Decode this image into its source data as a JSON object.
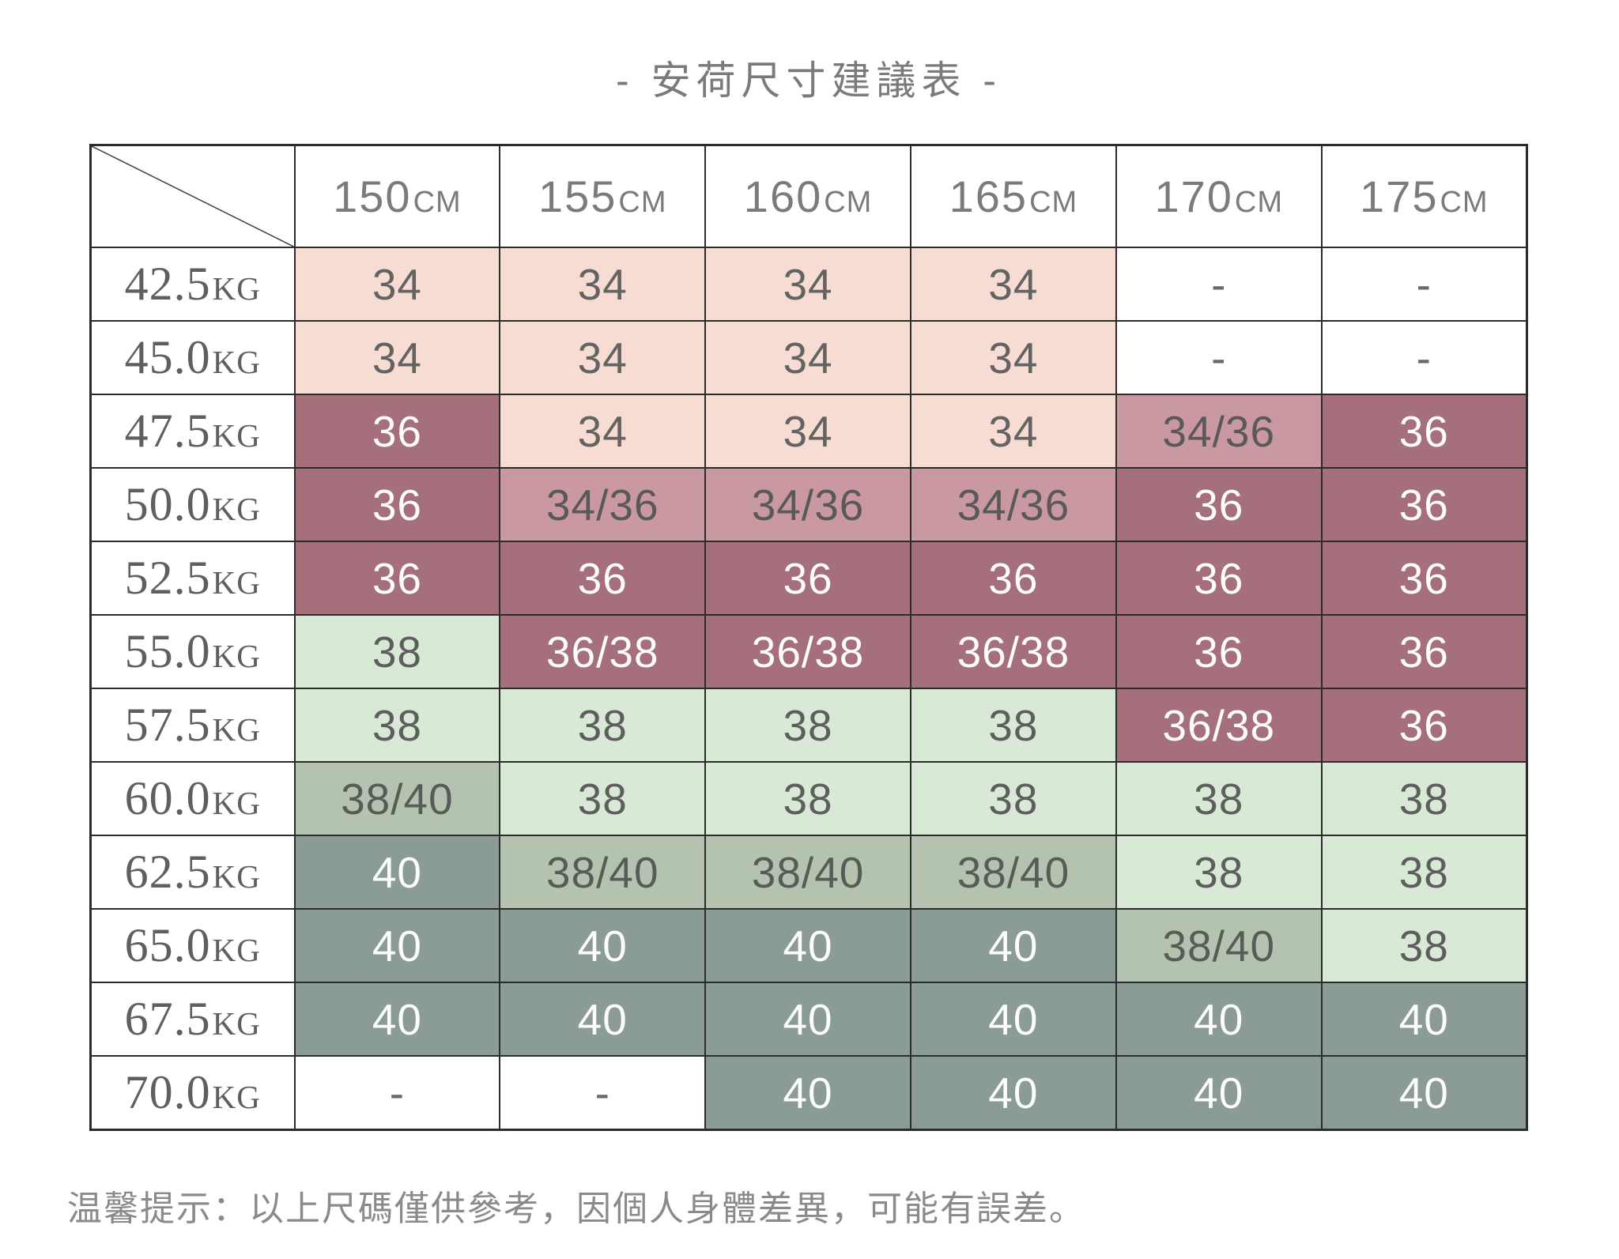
{
  "title": "- 安荷尺寸建議表 -",
  "footer": "温馨提示：以上尺碼僅供參考，因個人身體差異，可能有誤差。",
  "colors": {
    "light_pink": "#f6dcd2",
    "medium_mauve": "#c998a0",
    "dark_mauve": "#a5707c",
    "light_green": "#d8ead6",
    "medium_green": "#b3c3b0",
    "gray_green": "#8b9b96",
    "border": "#2b2b2b",
    "text_gray": "#636363",
    "text_white": "#fdfdfd"
  },
  "table": {
    "row_unit": "KG",
    "columns": [
      {
        "value": "150",
        "unit": "CM"
      },
      {
        "value": "155",
        "unit": "CM"
      },
      {
        "value": "160",
        "unit": "CM"
      },
      {
        "value": "165",
        "unit": "CM"
      },
      {
        "value": "170",
        "unit": "CM"
      },
      {
        "value": "175",
        "unit": "CM"
      }
    ],
    "rows": [
      {
        "weight": "42.5",
        "cells": [
          {
            "text": "34",
            "style": "pink"
          },
          {
            "text": "34",
            "style": "pink"
          },
          {
            "text": "34",
            "style": "pink"
          },
          {
            "text": "34",
            "style": "pink"
          },
          {
            "text": "-",
            "style": "plain"
          },
          {
            "text": "-",
            "style": "plain"
          }
        ]
      },
      {
        "weight": "45.0",
        "cells": [
          {
            "text": "34",
            "style": "pink"
          },
          {
            "text": "34",
            "style": "pink"
          },
          {
            "text": "34",
            "style": "pink"
          },
          {
            "text": "34",
            "style": "pink"
          },
          {
            "text": "-",
            "style": "plain"
          },
          {
            "text": "-",
            "style": "plain"
          }
        ]
      },
      {
        "weight": "47.5",
        "cells": [
          {
            "text": "36",
            "style": "mauve-dark"
          },
          {
            "text": "34",
            "style": "pink"
          },
          {
            "text": "34",
            "style": "pink"
          },
          {
            "text": "34",
            "style": "pink"
          },
          {
            "text": "34/36",
            "style": "mauve-mid"
          },
          {
            "text": "36",
            "style": "mauve-dark"
          }
        ]
      },
      {
        "weight": "50.0",
        "cells": [
          {
            "text": "36",
            "style": "mauve-dark"
          },
          {
            "text": "34/36",
            "style": "mauve-mid"
          },
          {
            "text": "34/36",
            "style": "mauve-mid"
          },
          {
            "text": "34/36",
            "style": "mauve-mid"
          },
          {
            "text": "36",
            "style": "mauve-dark"
          },
          {
            "text": "36",
            "style": "mauve-dark"
          }
        ]
      },
      {
        "weight": "52.5",
        "cells": [
          {
            "text": "36",
            "style": "mauve-dark"
          },
          {
            "text": "36",
            "style": "mauve-dark"
          },
          {
            "text": "36",
            "style": "mauve-dark"
          },
          {
            "text": "36",
            "style": "mauve-dark"
          },
          {
            "text": "36",
            "style": "mauve-dark"
          },
          {
            "text": "36",
            "style": "mauve-dark"
          }
        ]
      },
      {
        "weight": "55.0",
        "cells": [
          {
            "text": "38",
            "style": "green-light"
          },
          {
            "text": "36/38",
            "style": "mauve-dark"
          },
          {
            "text": "36/38",
            "style": "mauve-dark"
          },
          {
            "text": "36/38",
            "style": "mauve-dark"
          },
          {
            "text": "36",
            "style": "mauve-dark"
          },
          {
            "text": "36",
            "style": "mauve-dark"
          }
        ]
      },
      {
        "weight": "57.5",
        "cells": [
          {
            "text": "38",
            "style": "green-light"
          },
          {
            "text": "38",
            "style": "green-light"
          },
          {
            "text": "38",
            "style": "green-light"
          },
          {
            "text": "38",
            "style": "green-light"
          },
          {
            "text": "36/38",
            "style": "mauve-dark"
          },
          {
            "text": "36",
            "style": "mauve-dark"
          }
        ]
      },
      {
        "weight": "60.0",
        "cells": [
          {
            "text": "38/40",
            "style": "green-mid"
          },
          {
            "text": "38",
            "style": "green-light"
          },
          {
            "text": "38",
            "style": "green-light"
          },
          {
            "text": "38",
            "style": "green-light"
          },
          {
            "text": "38",
            "style": "green-light"
          },
          {
            "text": "38",
            "style": "green-light"
          }
        ]
      },
      {
        "weight": "62.5",
        "cells": [
          {
            "text": "40",
            "style": "gray"
          },
          {
            "text": "38/40",
            "style": "green-mid"
          },
          {
            "text": "38/40",
            "style": "green-mid"
          },
          {
            "text": "38/40",
            "style": "green-mid"
          },
          {
            "text": "38",
            "style": "green-light"
          },
          {
            "text": "38",
            "style": "green-light"
          }
        ]
      },
      {
        "weight": "65.0",
        "cells": [
          {
            "text": "40",
            "style": "gray"
          },
          {
            "text": "40",
            "style": "gray"
          },
          {
            "text": "40",
            "style": "gray"
          },
          {
            "text": "40",
            "style": "gray"
          },
          {
            "text": "38/40",
            "style": "green-mid"
          },
          {
            "text": "38",
            "style": "green-light"
          }
        ]
      },
      {
        "weight": "67.5",
        "cells": [
          {
            "text": "40",
            "style": "gray"
          },
          {
            "text": "40",
            "style": "gray"
          },
          {
            "text": "40",
            "style": "gray"
          },
          {
            "text": "40",
            "style": "gray"
          },
          {
            "text": "40",
            "style": "gray"
          },
          {
            "text": "40",
            "style": "gray"
          }
        ]
      },
      {
        "weight": "70.0",
        "cells": [
          {
            "text": "-",
            "style": "plain"
          },
          {
            "text": "-",
            "style": "plain"
          },
          {
            "text": "40",
            "style": "gray"
          },
          {
            "text": "40",
            "style": "gray"
          },
          {
            "text": "40",
            "style": "gray"
          },
          {
            "text": "40",
            "style": "gray"
          }
        ]
      }
    ]
  },
  "chart_data": {
    "type": "table",
    "title": "- 安荷尺寸建議表 -",
    "columns": [
      "150CM",
      "155CM",
      "160CM",
      "165CM",
      "170CM",
      "175CM"
    ],
    "row_headers": [
      "42.5KG",
      "45.0KG",
      "47.5KG",
      "50.0KG",
      "52.5KG",
      "55.0KG",
      "57.5KG",
      "60.0KG",
      "62.5KG",
      "65.0KG",
      "67.5KG",
      "70.0KG"
    ],
    "values": [
      [
        "34",
        "34",
        "34",
        "34",
        "-",
        "-"
      ],
      [
        "34",
        "34",
        "34",
        "34",
        "-",
        "-"
      ],
      [
        "36",
        "34",
        "34",
        "34",
        "34/36",
        "36"
      ],
      [
        "36",
        "34/36",
        "34/36",
        "34/36",
        "36",
        "36"
      ],
      [
        "36",
        "36",
        "36",
        "36",
        "36",
        "36"
      ],
      [
        "38",
        "36/38",
        "36/38",
        "36/38",
        "36",
        "36"
      ],
      [
        "38",
        "38",
        "38",
        "38",
        "36/38",
        "36"
      ],
      [
        "38/40",
        "38",
        "38",
        "38",
        "38",
        "38"
      ],
      [
        "40",
        "38/40",
        "38/40",
        "38/40",
        "38",
        "38"
      ],
      [
        "40",
        "40",
        "40",
        "40",
        "38/40",
        "38"
      ],
      [
        "40",
        "40",
        "40",
        "40",
        "40",
        "40"
      ],
      [
        "-",
        "-",
        "40",
        "40",
        "40",
        "40"
      ]
    ],
    "note": "温馨提示：以上尺碼僅供參考，因個人身體差異，可能有誤差。",
    "legend_hint": "cell background encodes size band: pink=34, mauve=36, light green=38, gray-green=40"
  }
}
